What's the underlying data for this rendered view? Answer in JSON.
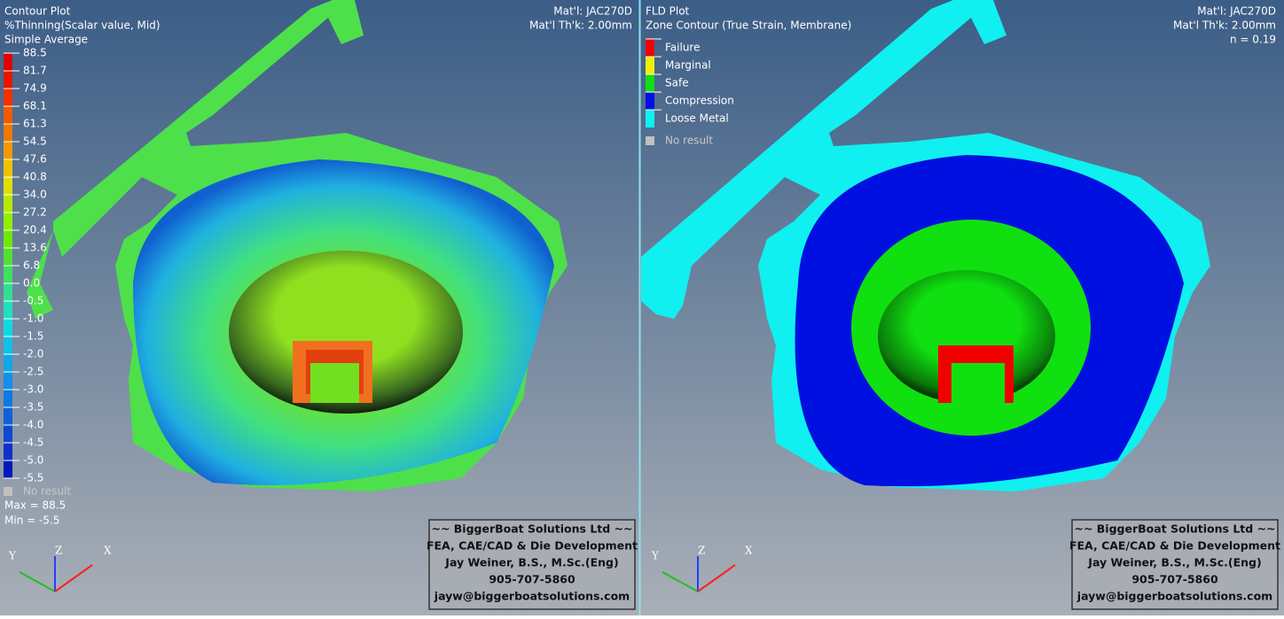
{
  "left": {
    "title": "Contour Plot",
    "subtitle": "%Thinning(Scalar value, Mid)",
    "method": "Simple Average",
    "material": "Mat'l:  JAC270D",
    "thickness": "Mat'l Th'k:  2.00mm",
    "legend": [
      {
        "label": "88.5",
        "color": "#e00000"
      },
      {
        "label": "81.7",
        "color": "#e81400"
      },
      {
        "label": "74.9",
        "color": "#f03000"
      },
      {
        "label": "68.1",
        "color": "#f05a00"
      },
      {
        "label": "61.3",
        "color": "#f07800"
      },
      {
        "label": "54.5",
        "color": "#f09a00"
      },
      {
        "label": "47.6",
        "color": "#f0c000"
      },
      {
        "label": "40.8",
        "color": "#e0e000"
      },
      {
        "label": "34.0",
        "color": "#b8e800"
      },
      {
        "label": "27.2",
        "color": "#90f000"
      },
      {
        "label": "20.4",
        "color": "#70e800"
      },
      {
        "label": "13.6",
        "color": "#50e030"
      },
      {
        "label": "6.8",
        "color": "#40e060"
      },
      {
        "label": "0.0",
        "color": "#30e090"
      },
      {
        "label": "-0.5",
        "color": "#20e0c0"
      },
      {
        "label": "-1.0",
        "color": "#10d8e0"
      },
      {
        "label": "-1.5",
        "color": "#10c0e8"
      },
      {
        "label": "-2.0",
        "color": "#10a8e8"
      },
      {
        "label": "-2.5",
        "color": "#1090e8"
      },
      {
        "label": "-3.0",
        "color": "#1078e0"
      },
      {
        "label": "-3.5",
        "color": "#1060d8"
      },
      {
        "label": "-4.0",
        "color": "#1048d0"
      },
      {
        "label": "-4.5",
        "color": "#1030c8"
      },
      {
        "label": "-5.0",
        "color": "#0818b8"
      },
      {
        "label": "-5.5",
        "color": "#0808a0"
      }
    ],
    "no_result": "No result",
    "max": "Max = 88.5",
    "min": "Min = -5.5"
  },
  "right": {
    "title": "FLD Plot",
    "subtitle": "Zone Contour (True Strain, Membrane)",
    "material": "Mat'l:  JAC270D",
    "thickness": "Mat'l Th'k:  2.00mm",
    "n_value": "n = 0.19",
    "legend": [
      {
        "label": "Failure",
        "color": "#f00000"
      },
      {
        "label": "Marginal",
        "color": "#f0f000"
      },
      {
        "label": "Safe",
        "color": "#10e010"
      },
      {
        "label": "Compression",
        "color": "#0010e0"
      },
      {
        "label": "Loose Metal",
        "color": "#10f0f0"
      }
    ],
    "no_result": "No result"
  },
  "axes": {
    "x": "X",
    "y": "Y",
    "z": "Z"
  },
  "credits": [
    "~~ BiggerBoat Solutions Ltd ~~",
    "FEA, CAE/CAD & Die Development",
    "Jay Weiner, B.S.,  M.Sc.(Eng)",
    "905-707-5860",
    "jayw@biggerboatsolutions.com"
  ]
}
